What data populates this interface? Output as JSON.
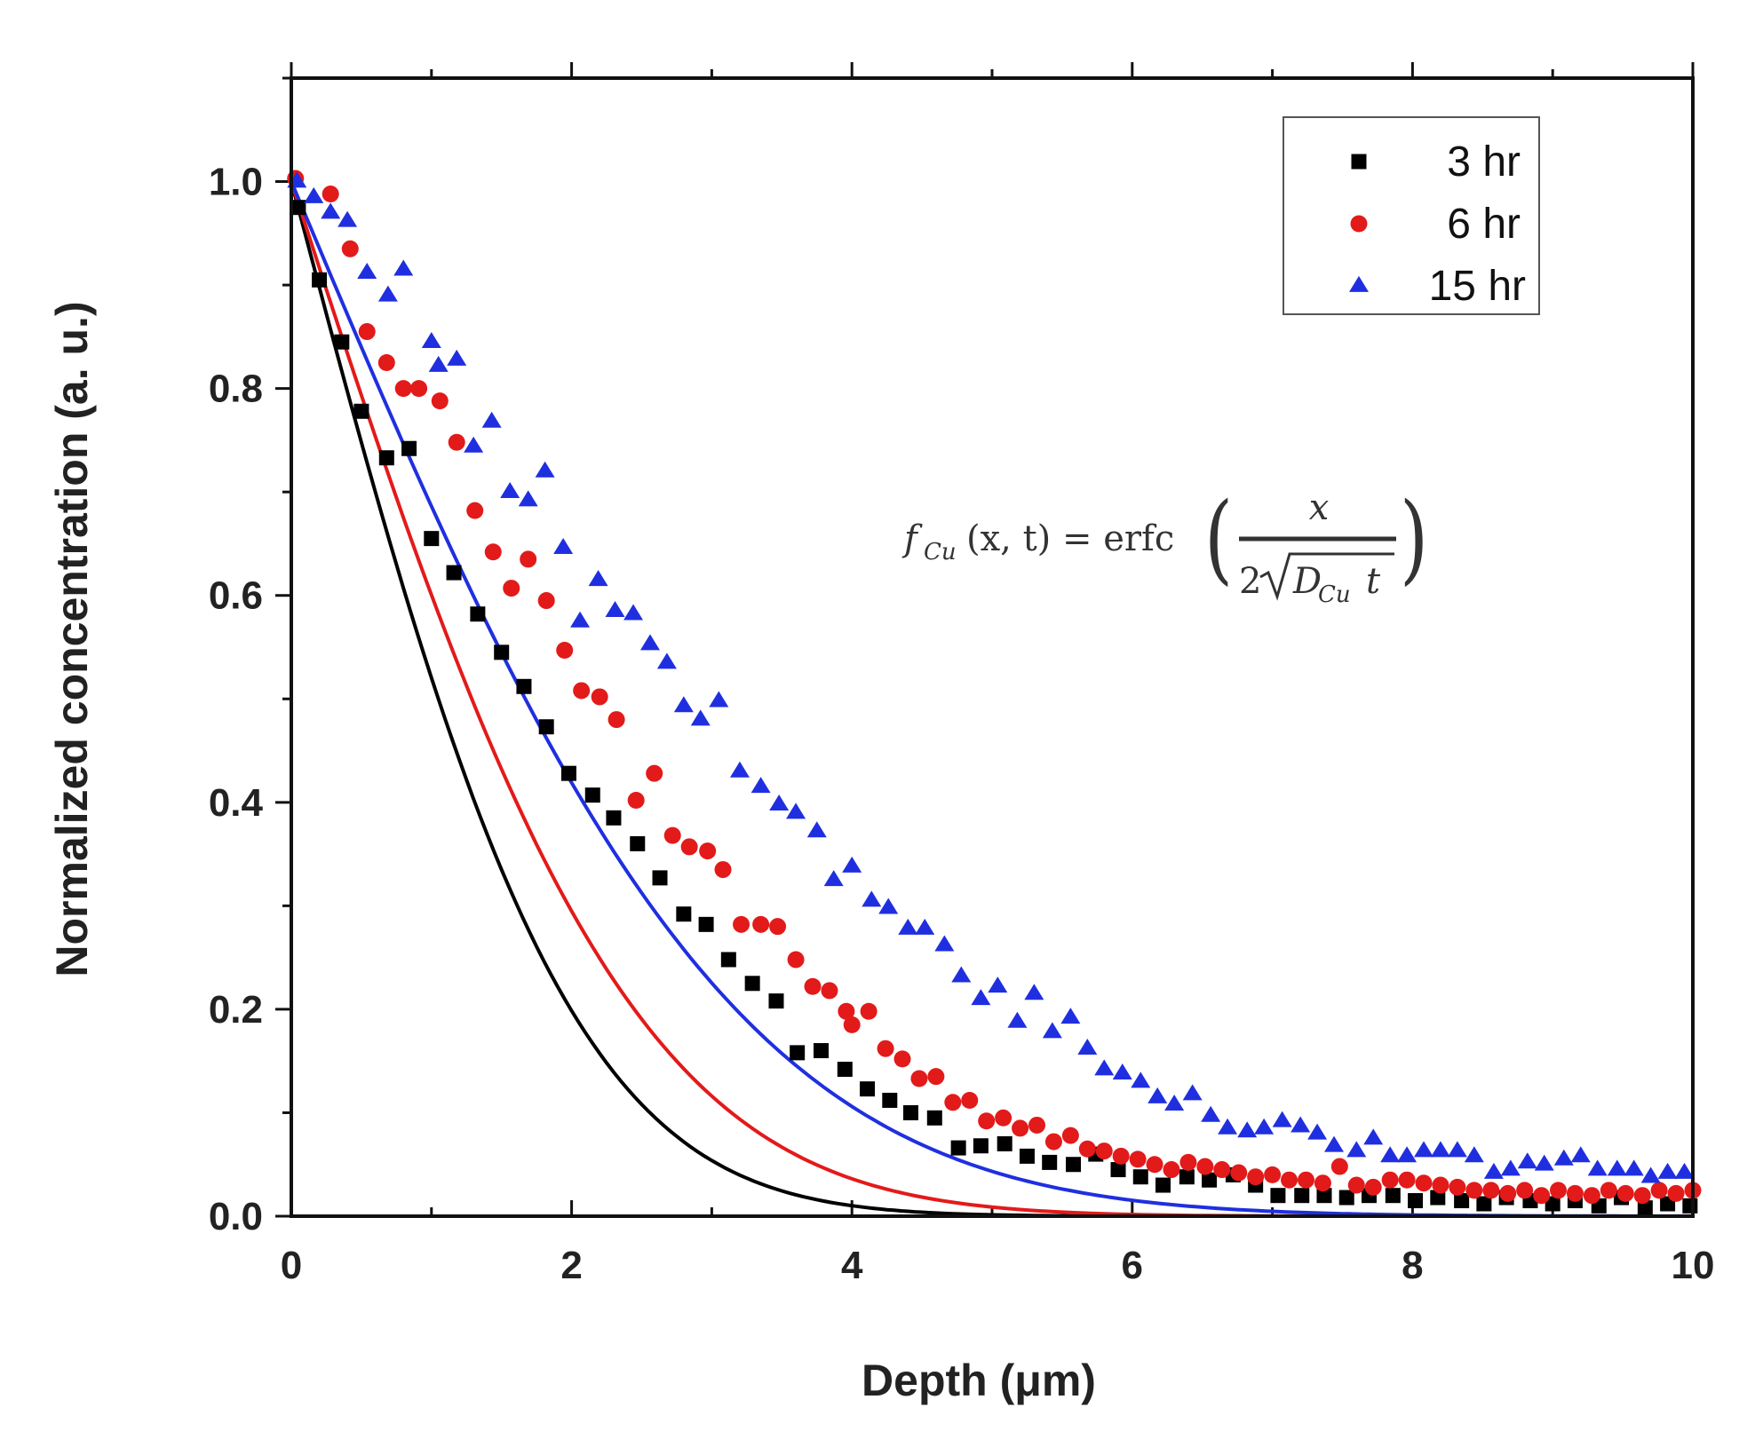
{
  "chart_data": {
    "type": "scatter",
    "title": "",
    "xlabel": "Depth (μm)",
    "ylabel": "Normalized concentration (a. u.)",
    "xlim": [
      0,
      10
    ],
    "ylim": [
      0,
      1.1
    ],
    "x_ticks": [
      0,
      2,
      4,
      6,
      8,
      10
    ],
    "x_tick_labels": [
      "0",
      "2",
      "4",
      "6",
      "8",
      "10"
    ],
    "y_ticks": [
      0.0,
      0.2,
      0.4,
      0.6,
      0.8,
      1.0
    ],
    "y_tick_labels": [
      "0.0",
      "0.2",
      "0.4",
      "0.6",
      "0.8",
      "1.0"
    ],
    "grid": false,
    "legend_position": "top-right",
    "annotation": {
      "lhs_f": "f",
      "lhs_sub": "Cu",
      "lhs_args": "(x, t) = erfc",
      "numerator": "x",
      "denominator_2": "2",
      "denominator_D": "D",
      "denominator_sub": "Cu",
      "denominator_t": "t"
    },
    "series": [
      {
        "name": "3 hr",
        "color": "#000000",
        "marker": "square",
        "fit_length_um": 2.2,
        "x": [
          0.05,
          0.2,
          0.36,
          0.5,
          0.68,
          0.84,
          1.0,
          1.16,
          1.33,
          1.5,
          1.66,
          1.82,
          1.98,
          2.15,
          2.3,
          2.47,
          2.63,
          2.8,
          2.96,
          3.12,
          3.29,
          3.46,
          3.61,
          3.78,
          3.95,
          4.11,
          4.27,
          4.42,
          4.59,
          4.76,
          4.92,
          5.09,
          5.25,
          5.41,
          5.58,
          5.74,
          5.9,
          6.06,
          6.22,
          6.39,
          6.55,
          6.72,
          6.88,
          7.04,
          7.21,
          7.37,
          7.53,
          7.69,
          7.86,
          8.02,
          8.18,
          8.35,
          8.51,
          8.67,
          8.84,
          9.0,
          9.16,
          9.33,
          9.49,
          9.66,
          9.82,
          9.98
        ],
        "y": [
          0.975,
          0.905,
          0.845,
          0.778,
          0.733,
          0.742,
          0.655,
          0.622,
          0.582,
          0.545,
          0.512,
          0.473,
          0.428,
          0.407,
          0.385,
          0.36,
          0.327,
          0.292,
          0.282,
          0.248,
          0.225,
          0.208,
          0.158,
          0.16,
          0.142,
          0.123,
          0.112,
          0.1,
          0.095,
          0.066,
          0.068,
          0.07,
          0.058,
          0.052,
          0.05,
          0.06,
          0.045,
          0.038,
          0.03,
          0.038,
          0.035,
          0.04,
          0.03,
          0.02,
          0.02,
          0.02,
          0.018,
          0.02,
          0.02,
          0.015,
          0.018,
          0.015,
          0.012,
          0.018,
          0.015,
          0.012,
          0.015,
          0.01,
          0.018,
          0.008,
          0.012,
          0.01
        ]
      },
      {
        "name": "6 hr",
        "color": "#e31a1a",
        "marker": "circle",
        "fit_length_um": 2.7,
        "x": [
          0.03,
          0.28,
          0.42,
          0.54,
          0.68,
          0.8,
          0.91,
          1.06,
          1.18,
          1.31,
          1.44,
          1.57,
          1.69,
          1.82,
          1.95,
          2.07,
          2.2,
          2.32,
          2.46,
          2.59,
          2.72,
          2.84,
          2.97,
          3.08,
          3.21,
          3.35,
          3.47,
          3.6,
          3.72,
          3.84,
          3.96,
          4.0,
          4.12,
          4.24,
          4.36,
          4.48,
          4.6,
          4.72,
          4.84,
          4.96,
          5.08,
          5.2,
          5.32,
          5.44,
          5.56,
          5.68,
          5.8,
          5.92,
          6.04,
          6.16,
          6.28,
          6.4,
          6.52,
          6.64,
          6.76,
          6.88,
          7.0,
          7.12,
          7.24,
          7.36,
          7.48,
          7.6,
          7.72,
          7.84,
          7.96,
          8.08,
          8.2,
          8.32,
          8.44,
          8.56,
          8.68,
          8.8,
          8.92,
          9.04,
          9.16,
          9.28,
          9.4,
          9.52,
          9.64,
          9.76,
          9.88,
          10.0
        ],
        "y": [
          1.003,
          0.988,
          0.935,
          0.855,
          0.825,
          0.8,
          0.8,
          0.788,
          0.748,
          0.682,
          0.642,
          0.607,
          0.635,
          0.595,
          0.547,
          0.508,
          0.502,
          0.48,
          0.402,
          0.428,
          0.368,
          0.357,
          0.353,
          0.335,
          0.282,
          0.282,
          0.28,
          0.248,
          0.222,
          0.218,
          0.198,
          0.185,
          0.198,
          0.162,
          0.152,
          0.133,
          0.135,
          0.11,
          0.112,
          0.092,
          0.095,
          0.085,
          0.088,
          0.072,
          0.078,
          0.065,
          0.063,
          0.058,
          0.055,
          0.05,
          0.045,
          0.052,
          0.048,
          0.045,
          0.042,
          0.038,
          0.04,
          0.035,
          0.035,
          0.032,
          0.048,
          0.03,
          0.028,
          0.035,
          0.035,
          0.032,
          0.03,
          0.028,
          0.025,
          0.025,
          0.022,
          0.025,
          0.02,
          0.025,
          0.022,
          0.02,
          0.025,
          0.022,
          0.02,
          0.025,
          0.022,
          0.025
        ]
      },
      {
        "name": "15 hr",
        "color": "#1f2fe0",
        "marker": "triangle",
        "fit_length_um": 3.5,
        "x": [
          0.04,
          0.16,
          0.28,
          0.4,
          0.54,
          0.69,
          0.8,
          1.0,
          1.05,
          1.18,
          1.3,
          1.43,
          1.56,
          1.69,
          1.81,
          1.94,
          2.06,
          2.19,
          2.31,
          2.44,
          2.56,
          2.68,
          2.8,
          2.92,
          3.05,
          3.2,
          3.35,
          3.48,
          3.6,
          3.75,
          3.87,
          4.0,
          4.14,
          4.26,
          4.4,
          4.52,
          4.66,
          4.78,
          4.92,
          5.04,
          5.18,
          5.3,
          5.43,
          5.56,
          5.68,
          5.8,
          5.93,
          6.06,
          6.18,
          6.3,
          6.43,
          6.56,
          6.68,
          6.82,
          6.94,
          7.07,
          7.2,
          7.32,
          7.44,
          7.6,
          7.72,
          7.84,
          7.96,
          8.08,
          8.2,
          8.32,
          8.44,
          8.58,
          8.7,
          8.82,
          8.94,
          9.08,
          9.2,
          9.32,
          9.46,
          9.58,
          9.7,
          9.82,
          9.94
        ],
        "y": [
          1.0,
          0.985,
          0.97,
          0.962,
          0.912,
          0.89,
          0.915,
          0.845,
          0.822,
          0.828,
          0.744,
          0.768,
          0.7,
          0.692,
          0.72,
          0.646,
          0.575,
          0.615,
          0.585,
          0.582,
          0.553,
          0.535,
          0.493,
          0.48,
          0.498,
          0.43,
          0.415,
          0.398,
          0.39,
          0.372,
          0.325,
          0.338,
          0.305,
          0.298,
          0.278,
          0.278,
          0.262,
          0.232,
          0.21,
          0.222,
          0.188,
          0.215,
          0.178,
          0.192,
          0.162,
          0.142,
          0.138,
          0.13,
          0.115,
          0.108,
          0.118,
          0.097,
          0.085,
          0.082,
          0.085,
          0.092,
          0.087,
          0.08,
          0.068,
          0.063,
          0.075,
          0.058,
          0.058,
          0.063,
          0.063,
          0.063,
          0.058,
          0.042,
          0.045,
          0.052,
          0.05,
          0.055,
          0.058,
          0.045,
          0.045,
          0.045,
          0.038,
          0.042,
          0.042
        ]
      }
    ]
  }
}
